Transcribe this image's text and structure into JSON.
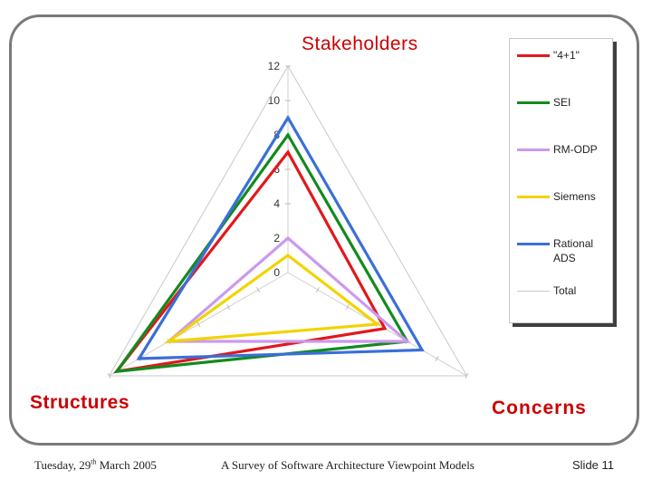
{
  "chart_data": {
    "type": "radar",
    "axes": [
      "Stakeholders",
      "Concerns",
      "Structures"
    ],
    "r_ticks": [
      "0",
      "2",
      "4",
      "6",
      "8",
      "10",
      "12"
    ],
    "r_range": [
      0,
      12
    ],
    "legend_position": "right",
    "series": [
      {
        "name": "\"4+1\"",
        "color": "#e3171b",
        "values": [
          7,
          6.5,
          11.5
        ]
      },
      {
        "name": "SEI",
        "color": "#138a1d",
        "values": [
          8,
          8,
          11.5
        ]
      },
      {
        "name": "RM-ODP",
        "color": "#cc99ee",
        "values": [
          2,
          8,
          8
        ]
      },
      {
        "name": "Siemens",
        "color": "#f2d300",
        "values": [
          1,
          6,
          8
        ]
      },
      {
        "name": "Rational ADS",
        "color": "#3a6fd8",
        "values": [
          9,
          9,
          10
        ]
      },
      {
        "name": "Total",
        "color": "#c9c9c9",
        "values": [
          12,
          12,
          12
        ]
      }
    ]
  },
  "footer": {
    "date_prefix": "Tuesday, 29",
    "date_sup": "th",
    "date_suffix": " March 2005",
    "title": "A Survey of Software Architecture Viewpoint Models",
    "slide": "Slide 11"
  }
}
